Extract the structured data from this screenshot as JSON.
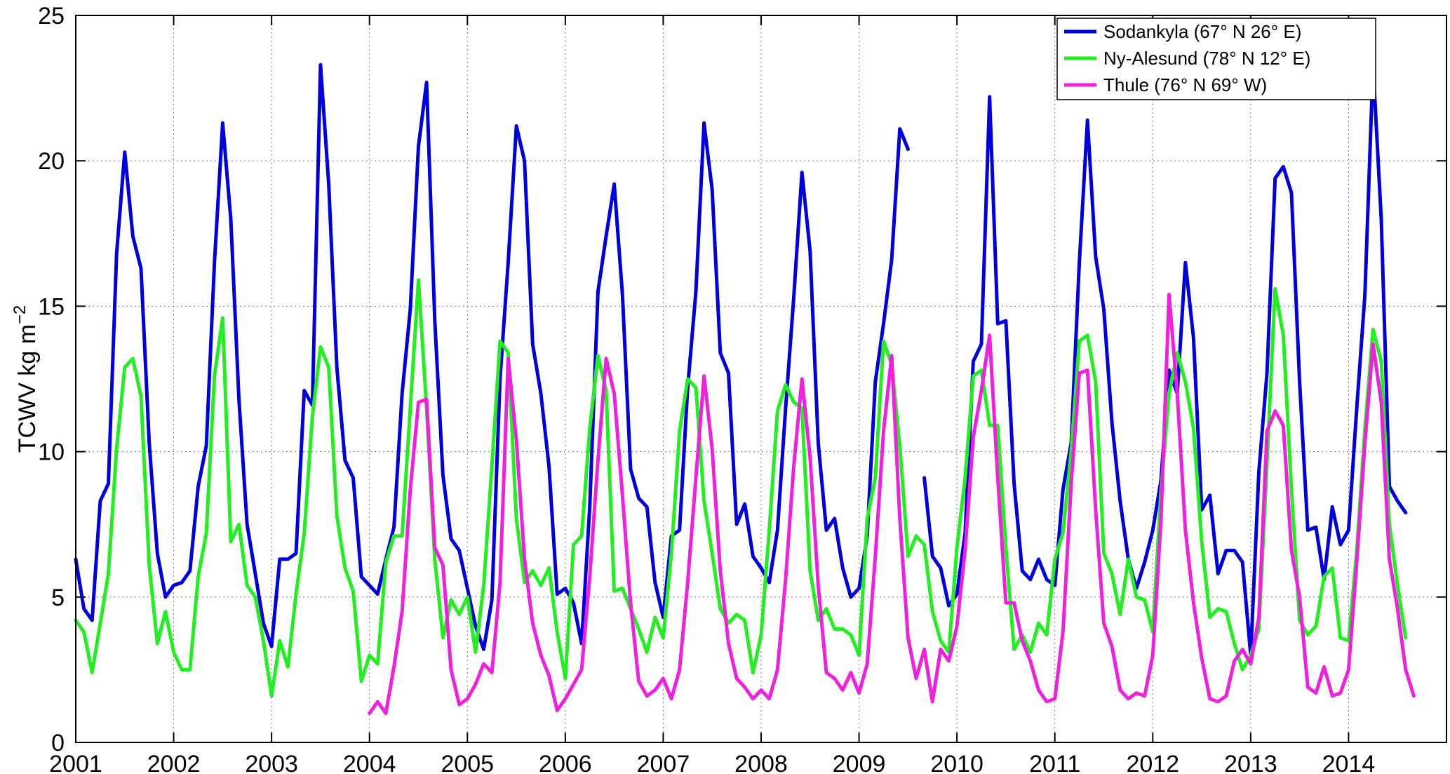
{
  "chart_data": {
    "type": "line",
    "ylabel_main": "TCWV kg m",
    "ylabel_sup": "−2",
    "xlim": [
      2001,
      2015
    ],
    "ylim": [
      0,
      25
    ],
    "xticks": [
      2001,
      2002,
      2003,
      2004,
      2005,
      2006,
      2007,
      2008,
      2009,
      2010,
      2011,
      2012,
      2013,
      2014
    ],
    "xtick_labels": [
      "2001",
      "2002",
      "2003",
      "2004",
      "2005",
      "2006",
      "2007",
      "2008",
      "2009",
      "2010",
      "2011",
      "2012",
      "2013",
      "2014"
    ],
    "yticks": [
      0,
      5,
      10,
      15,
      20,
      25
    ],
    "ytick_labels": [
      "0",
      "5",
      "10",
      "15",
      "20",
      "25"
    ],
    "grid": true,
    "legend_position": "top-right",
    "series": [
      {
        "name": "Sodankyla (67° N 26° E)",
        "color": "#0000dd",
        "start": 2001.0,
        "step": 0.08333333,
        "values": [
          6.3,
          4.6,
          4.2,
          8.3,
          8.9,
          16.8,
          20.3,
          17.4,
          16.3,
          10.3,
          6.5,
          5.0,
          5.4,
          5.5,
          5.9,
          8.8,
          10.2,
          16.5,
          21.3,
          18.0,
          11.8,
          7.5,
          5.8,
          4.1,
          3.3,
          6.3,
          6.3,
          6.5,
          12.1,
          11.6,
          23.3,
          19.2,
          12.9,
          9.7,
          9.1,
          5.7,
          5.4,
          5.1,
          6.3,
          7.4,
          12.0,
          14.9,
          20.5,
          22.7,
          14.5,
          9.2,
          7.0,
          6.6,
          5.3,
          4.0,
          3.2,
          4.9,
          12.5,
          16.5,
          21.2,
          20.0,
          13.7,
          12.0,
          9.5,
          5.1,
          5.3,
          4.8,
          3.4,
          8.1,
          15.5,
          17.4,
          19.2,
          15.4,
          9.4,
          8.4,
          8.1,
          5.5,
          4.3,
          7.1,
          7.3,
          12.2,
          15.5,
          21.3,
          19.0,
          13.4,
          12.7,
          7.5,
          8.2,
          6.4,
          6.0,
          5.5,
          7.3,
          11.5,
          15.3,
          19.6,
          16.9,
          10.3,
          7.3,
          7.7,
          6.0,
          5.0,
          5.3,
          7.1,
          12.4,
          14.4,
          16.6,
          21.1,
          20.4,
          null,
          9.1,
          6.4,
          6.0,
          4.7,
          5.1,
          7.2,
          13.1,
          13.7,
          22.2,
          14.4,
          14.5,
          8.9,
          5.9,
          5.6,
          6.3,
          5.6,
          5.4,
          8.7,
          10.3,
          16.5,
          21.4,
          16.7,
          14.9,
          11.0,
          8.3,
          6.3,
          5.3,
          6.2,
          7.3,
          9.0,
          12.8,
          12.0,
          16.5,
          13.9,
          8.0,
          8.5,
          5.8,
          6.6,
          6.6,
          6.2,
          3.0,
          9.3,
          12.7,
          19.4,
          19.8,
          18.9,
          12.4,
          7.3,
          7.4,
          5.6,
          8.1,
          6.8,
          7.3,
          11.5,
          15.4,
          23.3,
          18.0,
          8.8,
          8.3,
          7.9
        ]
      },
      {
        "name": "Ny-Alesund (78° N 12° E)",
        "color": "#22ee22",
        "start": 2001.0,
        "step": 0.08333333,
        "values": [
          4.2,
          3.8,
          2.4,
          4.1,
          5.8,
          10.1,
          12.9,
          13.2,
          11.9,
          6.1,
          3.4,
          4.5,
          3.1,
          2.5,
          2.5,
          5.7,
          7.2,
          12.6,
          14.6,
          6.9,
          7.5,
          5.4,
          5.0,
          3.5,
          1.6,
          3.5,
          2.6,
          5.1,
          7.2,
          11.2,
          13.6,
          12.9,
          7.8,
          6.0,
          5.2,
          2.1,
          3.0,
          2.7,
          6.2,
          7.1,
          7.1,
          11.5,
          15.9,
          11.5,
          6.3,
          3.6,
          4.9,
          4.4,
          5.0,
          3.1,
          5.4,
          9.5,
          13.8,
          13.4,
          7.7,
          5.5,
          5.9,
          5.4,
          6.0,
          3.8,
          2.2,
          6.8,
          7.1,
          10.8,
          13.3,
          12.1,
          5.2,
          5.3,
          4.6,
          3.9,
          3.1,
          4.3,
          3.6,
          6.5,
          10.7,
          12.5,
          12.2,
          8.3,
          6.5,
          4.6,
          4.1,
          4.4,
          4.2,
          2.4,
          3.7,
          7.3,
          11.4,
          12.3,
          11.7,
          11.5,
          5.9,
          4.2,
          4.6,
          3.9,
          3.9,
          3.7,
          3.0,
          7.7,
          9.1,
          13.8,
          13.0,
          10.2,
          6.4,
          7.1,
          6.8,
          4.5,
          3.5,
          3.1,
          6.7,
          9.1,
          12.6,
          12.8,
          10.9,
          10.9,
          6.7,
          3.2,
          3.7,
          3.1,
          4.1,
          3.7,
          6.3,
          7.2,
          10.0,
          13.8,
          14.0,
          12.4,
          6.5,
          5.8,
          4.4,
          6.3,
          5.0,
          4.9,
          3.8,
          8.6,
          12.0,
          13.4,
          12.4,
          10.8,
          6.9,
          4.3,
          4.6,
          4.5,
          3.4,
          2.5,
          3.0,
          3.9,
          9.6,
          15.6,
          14.0,
          8.7,
          4.2,
          3.7,
          4.0,
          5.7,
          6.0,
          3.6,
          3.5,
          6.6,
          10.8,
          14.2,
          13.1,
          7.5,
          5.4,
          3.6
        ]
      },
      {
        "name": "Thule (76° N 69° W)",
        "color": "#ee22dd",
        "start": 2004.0,
        "step": 0.08333333,
        "values": [
          1.0,
          1.4,
          1.0,
          2.6,
          4.5,
          8.7,
          11.7,
          11.8,
          6.7,
          6.1,
          2.5,
          1.3,
          1.5,
          2.0,
          2.7,
          2.4,
          5.5,
          13.2,
          10.4,
          6.3,
          4.1,
          3.0,
          2.3,
          1.1,
          1.5,
          2.0,
          2.5,
          5.7,
          9.7,
          13.2,
          12.0,
          8.5,
          4.8,
          2.1,
          1.6,
          1.8,
          2.2,
          1.5,
          2.5,
          5.5,
          9.1,
          12.6,
          10.1,
          5.9,
          3.4,
          2.2,
          1.9,
          1.5,
          1.8,
          1.5,
          2.5,
          5.6,
          9.5,
          12.5,
          9.8,
          5.4,
          2.4,
          2.2,
          1.8,
          2.4,
          1.7,
          2.7,
          6.4,
          10.7,
          13.3,
          7.7,
          3.6,
          2.2,
          3.2,
          1.4,
          3.2,
          2.8,
          4.0,
          6.6,
          10.5,
          12.1,
          14.0,
          9.1,
          4.8,
          4.8,
          3.5,
          2.8,
          1.8,
          1.4,
          1.5,
          3.8,
          8.9,
          12.7,
          12.8,
          8.0,
          4.1,
          3.3,
          1.8,
          1.5,
          1.7,
          1.6,
          3.0,
          7.6,
          15.4,
          12.0,
          7.3,
          4.8,
          2.9,
          1.5,
          1.4,
          1.6,
          2.8,
          3.2,
          2.7,
          4.3,
          10.7,
          11.4,
          10.9,
          6.6,
          5.0,
          1.9,
          1.7,
          2.6,
          1.6,
          1.7,
          2.5,
          6.2,
          10.3,
          13.7,
          11.7,
          6.3,
          4.6,
          2.5,
          1.6
        ]
      }
    ]
  }
}
